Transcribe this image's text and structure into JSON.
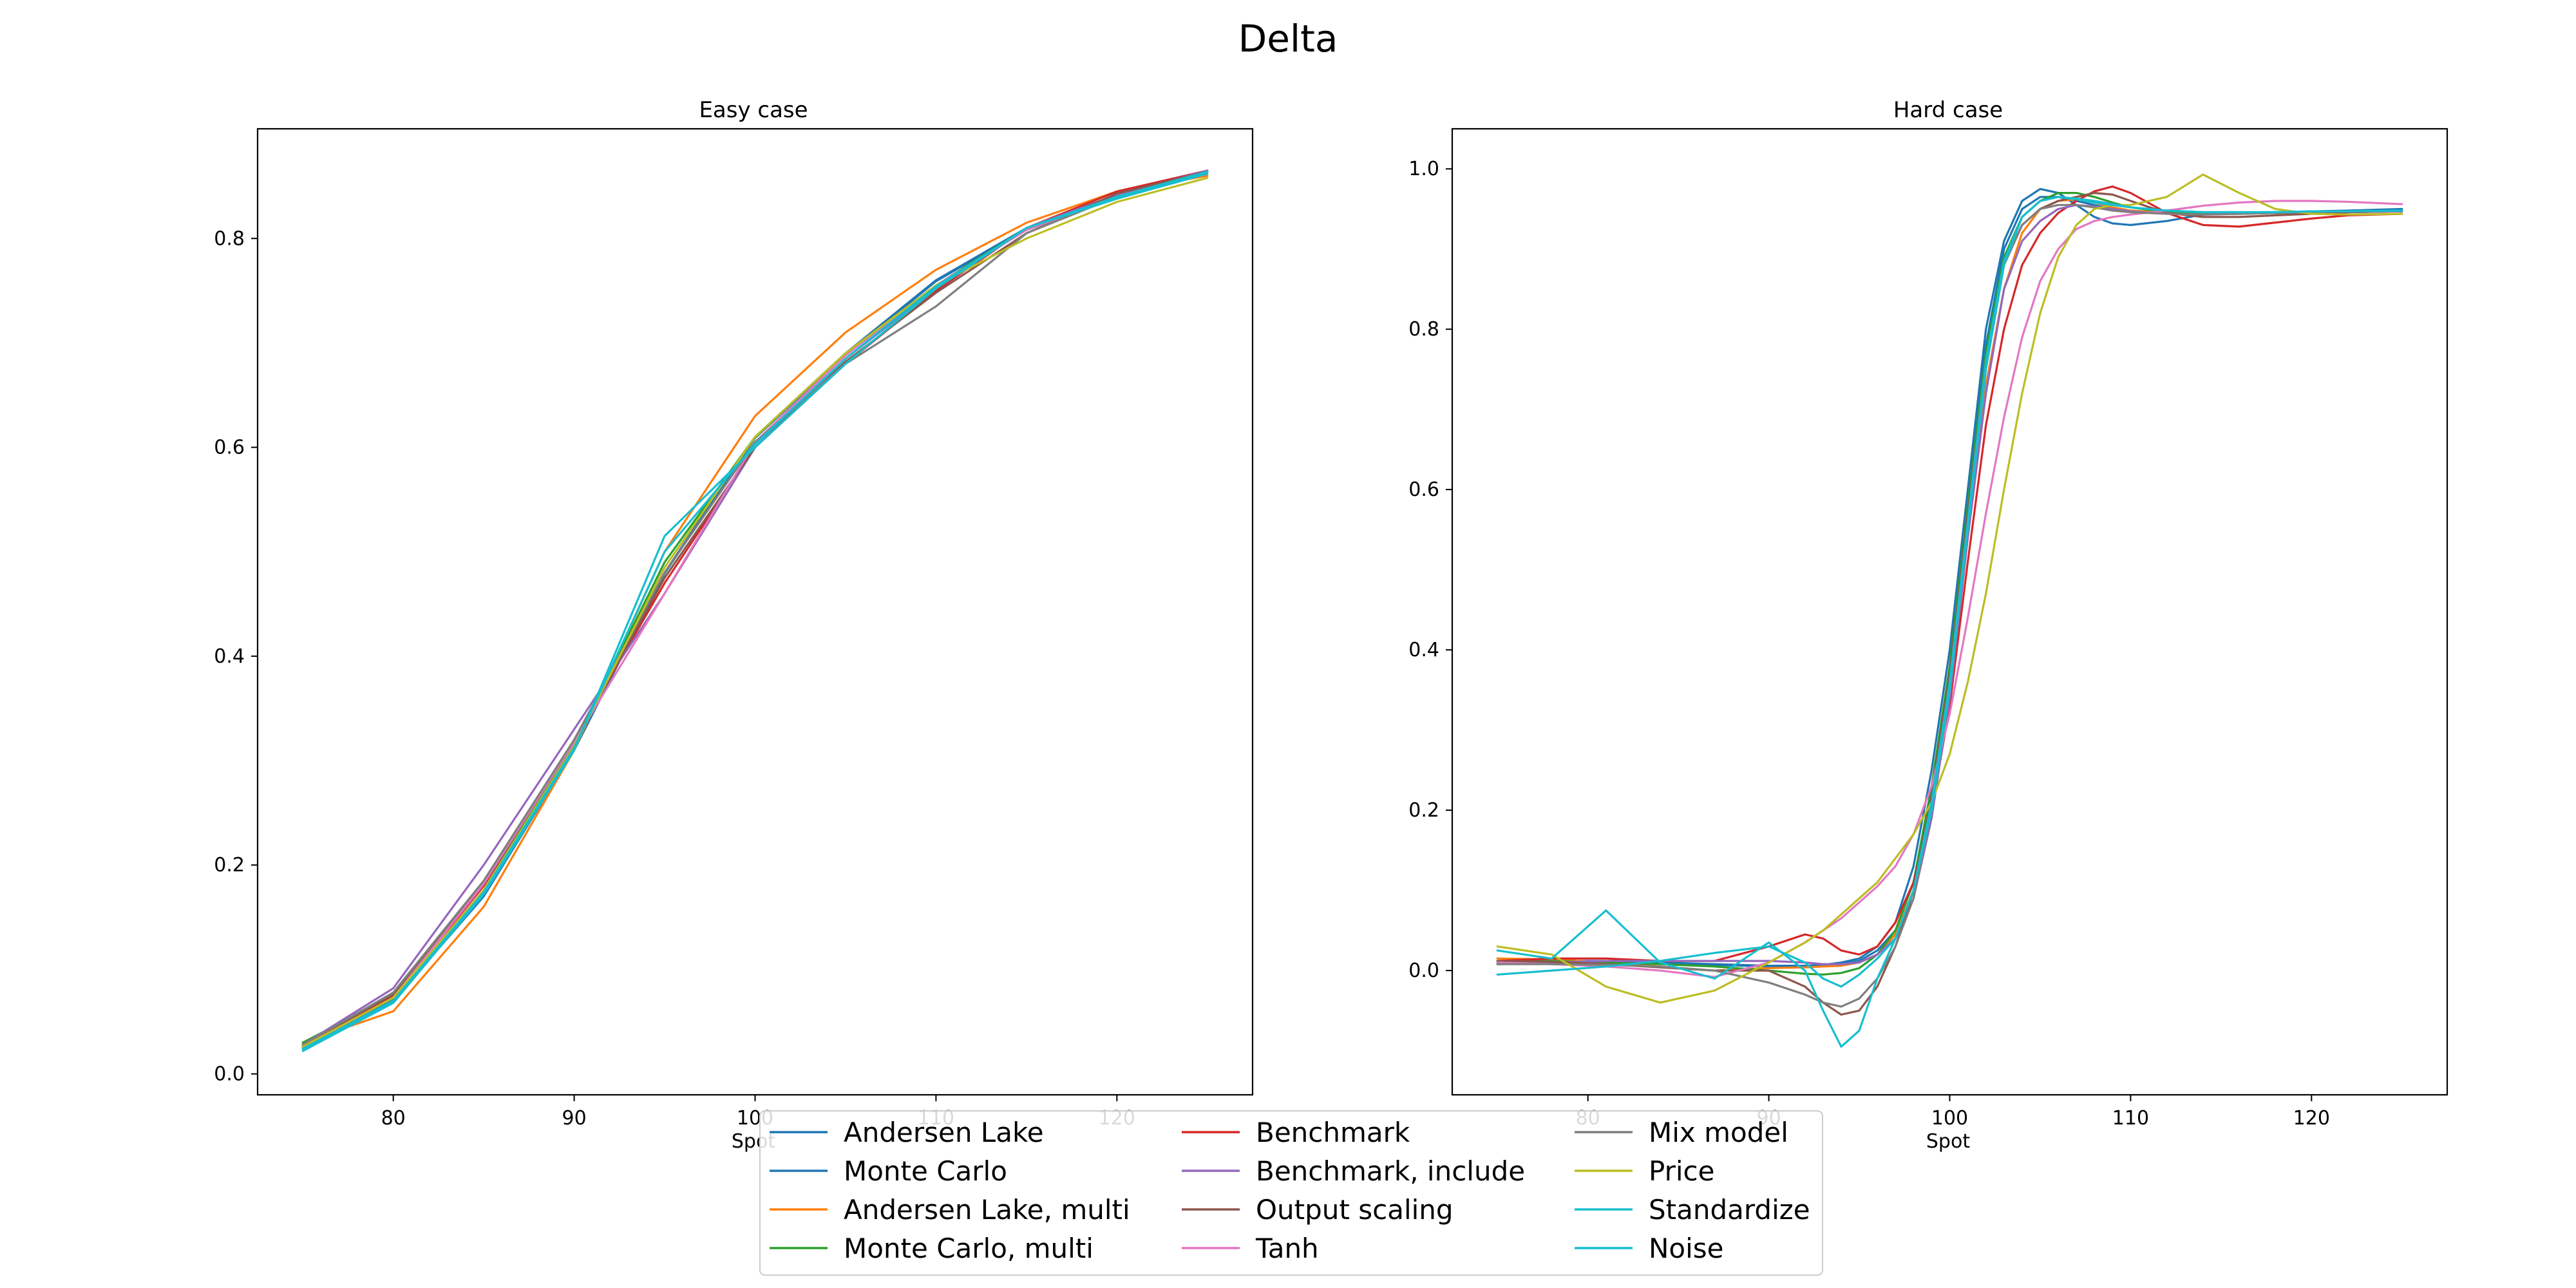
{
  "figure": {
    "suptitle": "Delta"
  },
  "chart_data": [
    {
      "type": "line",
      "title": "Easy case",
      "xlabel": "Spot",
      "ylabel": "",
      "xlim": [
        72.5,
        127.5
      ],
      "ylim": [
        -0.02,
        0.905
      ],
      "xticks": [
        80,
        90,
        100,
        110,
        120
      ],
      "yticks": [
        0.0,
        0.2,
        0.4,
        0.6,
        0.8
      ],
      "grid": false,
      "x": [
        75,
        80,
        85,
        90,
        95,
        100,
        105,
        110,
        115,
        120,
        125
      ],
      "series": [
        {
          "name": "Andersen Lake",
          "color": "#1f77b4",
          "values": [
            0.025,
            0.07,
            0.17,
            0.31,
            0.48,
            0.61,
            0.69,
            0.76,
            0.81,
            0.84,
            0.865
          ]
        },
        {
          "name": "Monte Carlo",
          "color": "#1f77b4",
          "values": [
            0.025,
            0.071,
            0.171,
            0.311,
            0.479,
            0.609,
            0.689,
            0.759,
            0.809,
            0.839,
            0.864
          ]
        },
        {
          "name": "Andersen Lake, multi",
          "color": "#ff7f0e",
          "values": [
            0.03,
            0.06,
            0.16,
            0.31,
            0.5,
            0.63,
            0.71,
            0.77,
            0.815,
            0.845,
            0.86
          ]
        },
        {
          "name": "Monte Carlo, multi",
          "color": "#2ca02c",
          "values": [
            0.03,
            0.075,
            0.18,
            0.315,
            0.49,
            0.61,
            0.69,
            0.755,
            0.81,
            0.84,
            0.862
          ]
        },
        {
          "name": "Benchmark",
          "color": "#d62728",
          "values": [
            0.027,
            0.074,
            0.18,
            0.32,
            0.47,
            0.6,
            0.68,
            0.75,
            0.81,
            0.845,
            0.865
          ]
        },
        {
          "name": "Benchmark, include",
          "color": "#9467bd",
          "values": [
            0.028,
            0.082,
            0.2,
            0.33,
            0.46,
            0.6,
            0.685,
            0.752,
            0.81,
            0.842,
            0.865
          ]
        },
        {
          "name": "Output scaling",
          "color": "#8c564b",
          "values": [
            0.028,
            0.076,
            0.182,
            0.318,
            0.475,
            0.6,
            0.682,
            0.748,
            0.805,
            0.843,
            0.864
          ]
        },
        {
          "name": "Tanh",
          "color": "#e377c2",
          "values": [
            0.026,
            0.073,
            0.182,
            0.318,
            0.46,
            0.605,
            0.688,
            0.755,
            0.808,
            0.84,
            0.862
          ]
        },
        {
          "name": "Mix model",
          "color": "#7f7f7f",
          "values": [
            0.028,
            0.078,
            0.185,
            0.32,
            0.48,
            0.605,
            0.68,
            0.735,
            0.805,
            0.84,
            0.862
          ]
        },
        {
          "name": "Price",
          "color": "#bcbd22",
          "values": [
            0.026,
            0.073,
            0.176,
            0.314,
            0.485,
            0.61,
            0.69,
            0.755,
            0.8,
            0.835,
            0.858
          ]
        },
        {
          "name": "Standardize",
          "color": "#17becf",
          "values": [
            0.022,
            0.068,
            0.172,
            0.31,
            0.515,
            0.6,
            0.68,
            0.752,
            0.81,
            0.838,
            0.862
          ]
        },
        {
          "name": "Noise",
          "color": "#17becf",
          "values": [
            0.024,
            0.07,
            0.174,
            0.312,
            0.5,
            0.603,
            0.685,
            0.754,
            0.81,
            0.84,
            0.864
          ]
        }
      ]
    },
    {
      "type": "line",
      "title": "Hard case",
      "xlabel": "Spot",
      "ylabel": "",
      "xlim": [
        72.5,
        127.5
      ],
      "ylim": [
        -0.155,
        1.05
      ],
      "xticks": [
        80,
        90,
        100,
        110,
        120
      ],
      "yticks": [
        0.0,
        0.2,
        0.4,
        0.6,
        0.8,
        1.0
      ],
      "grid": false,
      "x": [
        75,
        78,
        81,
        84,
        87,
        90,
        92,
        93,
        94,
        95,
        96,
        97,
        98,
        99,
        100,
        101,
        102,
        103,
        104,
        105,
        106,
        107,
        108,
        109,
        110,
        112,
        114,
        116,
        118,
        120,
        122,
        125
      ],
      "series": [
        {
          "name": "Andersen Lake",
          "color": "#1f77b4",
          "values": [
            0.01,
            0.012,
            0.012,
            0.01,
            0.008,
            0.006,
            0.006,
            0.007,
            0.01,
            0.015,
            0.03,
            0.06,
            0.13,
            0.25,
            0.4,
            0.6,
            0.8,
            0.91,
            0.96,
            0.975,
            0.97,
            0.955,
            0.94,
            0.932,
            0.93,
            0.935,
            0.943,
            0.945,
            0.945,
            0.945,
            0.946,
            0.948
          ]
        },
        {
          "name": "Monte Carlo",
          "color": "#1f77b4",
          "values": [
            0.008,
            0.01,
            0.011,
            0.009,
            0.007,
            0.005,
            0.005,
            0.006,
            0.008,
            0.012,
            0.025,
            0.05,
            0.11,
            0.22,
            0.37,
            0.58,
            0.78,
            0.9,
            0.95,
            0.965,
            0.965,
            0.96,
            0.955,
            0.95,
            0.948,
            0.945,
            0.944,
            0.945,
            0.946,
            0.947,
            0.948,
            0.95
          ]
        },
        {
          "name": "Andersen Lake, multi",
          "color": "#ff7f0e",
          "values": [
            0.015,
            0.014,
            0.01,
            0.005,
            0.0,
            0.003,
            0.004,
            0.005,
            0.006,
            0.01,
            0.02,
            0.045,
            0.1,
            0.2,
            0.35,
            0.55,
            0.73,
            0.85,
            0.92,
            0.95,
            0.96,
            0.962,
            0.958,
            0.952,
            0.948,
            0.945,
            0.944,
            0.944,
            0.945,
            0.945,
            0.946,
            0.947
          ]
        },
        {
          "name": "Monte Carlo, multi",
          "color": "#2ca02c",
          "values": [
            0.012,
            0.012,
            0.01,
            0.008,
            0.005,
            0.0,
            -0.004,
            -0.005,
            -0.003,
            0.003,
            0.02,
            0.05,
            0.11,
            0.23,
            0.38,
            0.58,
            0.77,
            0.89,
            0.94,
            0.96,
            0.97,
            0.97,
            0.965,
            0.958,
            0.952,
            0.946,
            0.944,
            0.944,
            0.945,
            0.946,
            0.946,
            0.947
          ]
        },
        {
          "name": "Benchmark",
          "color": "#d62728",
          "values": [
            0.012,
            0.015,
            0.015,
            0.012,
            0.012,
            0.03,
            0.045,
            0.04,
            0.025,
            0.02,
            0.03,
            0.06,
            0.11,
            0.2,
            0.33,
            0.51,
            0.68,
            0.8,
            0.88,
            0.92,
            0.945,
            0.96,
            0.972,
            0.978,
            0.97,
            0.945,
            0.93,
            0.928,
            0.933,
            0.938,
            0.942,
            0.944
          ]
        },
        {
          "name": "Benchmark, include",
          "color": "#9467bd",
          "values": [
            0.008,
            0.01,
            0.012,
            0.012,
            0.012,
            0.012,
            0.01,
            0.008,
            0.008,
            0.01,
            0.02,
            0.04,
            0.09,
            0.19,
            0.34,
            0.54,
            0.72,
            0.85,
            0.91,
            0.935,
            0.95,
            0.955,
            0.953,
            0.95,
            0.947,
            0.944,
            0.943,
            0.944,
            0.945,
            0.946,
            0.946,
            0.947
          ]
        },
        {
          "name": "Output scaling",
          "color": "#8c564b",
          "values": [
            0.012,
            0.011,
            0.008,
            0.004,
            0.0,
            0.0,
            -0.02,
            -0.04,
            -0.055,
            -0.05,
            -0.02,
            0.03,
            0.1,
            0.22,
            0.37,
            0.57,
            0.76,
            0.88,
            0.93,
            0.95,
            0.96,
            0.965,
            0.97,
            0.968,
            0.96,
            0.945,
            0.94,
            0.94,
            0.942,
            0.944,
            0.946,
            0.948
          ]
        },
        {
          "name": "Tanh",
          "color": "#e377c2",
          "values": [
            0.01,
            0.008,
            0.005,
            0.0,
            -0.008,
            0.01,
            0.035,
            0.05,
            0.065,
            0.085,
            0.105,
            0.13,
            0.17,
            0.23,
            0.32,
            0.44,
            0.57,
            0.69,
            0.79,
            0.86,
            0.9,
            0.925,
            0.935,
            0.94,
            0.943,
            0.948,
            0.954,
            0.958,
            0.96,
            0.96,
            0.959,
            0.956
          ]
        },
        {
          "name": "Mix model",
          "color": "#7f7f7f",
          "values": [
            0.008,
            0.008,
            0.007,
            0.005,
            0.0,
            -0.015,
            -0.03,
            -0.04,
            -0.045,
            -0.035,
            -0.01,
            0.03,
            0.09,
            0.2,
            0.35,
            0.55,
            0.75,
            0.88,
            0.93,
            0.95,
            0.955,
            0.955,
            0.952,
            0.948,
            0.946,
            0.944,
            0.943,
            0.944,
            0.945,
            0.946,
            0.947,
            0.948
          ]
        },
        {
          "name": "Price",
          "color": "#bcbd22",
          "values": [
            0.03,
            0.02,
            -0.02,
            -0.04,
            -0.025,
            0.01,
            0.035,
            0.05,
            0.07,
            0.09,
            0.11,
            0.14,
            0.17,
            0.21,
            0.27,
            0.36,
            0.47,
            0.6,
            0.72,
            0.82,
            0.89,
            0.93,
            0.95,
            0.955,
            0.955,
            0.965,
            0.993,
            0.97,
            0.95,
            0.944,
            0.943,
            0.944
          ]
        },
        {
          "name": "Standardize",
          "color": "#17becf",
          "values": [
            0.025,
            0.015,
            0.075,
            0.01,
            -0.01,
            0.035,
            0.0,
            -0.05,
            -0.095,
            -0.075,
            -0.01,
            0.04,
            0.1,
            0.2,
            0.35,
            0.55,
            0.75,
            0.88,
            0.94,
            0.96,
            0.965,
            0.963,
            0.96,
            0.956,
            0.952,
            0.948,
            0.946,
            0.946,
            0.946,
            0.947,
            0.947,
            0.948
          ]
        },
        {
          "name": "Noise",
          "color": "#17becf",
          "values": [
            -0.005,
            0.0,
            0.005,
            0.012,
            0.022,
            0.03,
            0.01,
            -0.01,
            -0.02,
            -0.005,
            0.015,
            0.04,
            0.1,
            0.21,
            0.36,
            0.56,
            0.76,
            0.885,
            0.94,
            0.96,
            0.965,
            0.962,
            0.958,
            0.955,
            0.952,
            0.948,
            0.946,
            0.946,
            0.946,
            0.947,
            0.947,
            0.948
          ]
        }
      ]
    }
  ],
  "legend": {
    "placement": "lower center",
    "columns": 3,
    "entries": [
      {
        "label": "Andersen Lake",
        "color": "#1f77b4"
      },
      {
        "label": "Monte Carlo",
        "color": "#1f77b4"
      },
      {
        "label": "Andersen Lake, multi",
        "color": "#ff7f0e"
      },
      {
        "label": "Monte Carlo, multi",
        "color": "#2ca02c"
      },
      {
        "label": "Benchmark",
        "color": "#d62728"
      },
      {
        "label": "Benchmark, include",
        "color": "#9467bd"
      },
      {
        "label": "Output scaling",
        "color": "#8c564b"
      },
      {
        "label": "Tanh",
        "color": "#e377c2"
      },
      {
        "label": "Mix model",
        "color": "#7f7f7f"
      },
      {
        "label": "Price",
        "color": "#bcbd22"
      },
      {
        "label": "Standardize",
        "color": "#17becf"
      },
      {
        "label": "Noise",
        "color": "#17becf"
      }
    ]
  }
}
